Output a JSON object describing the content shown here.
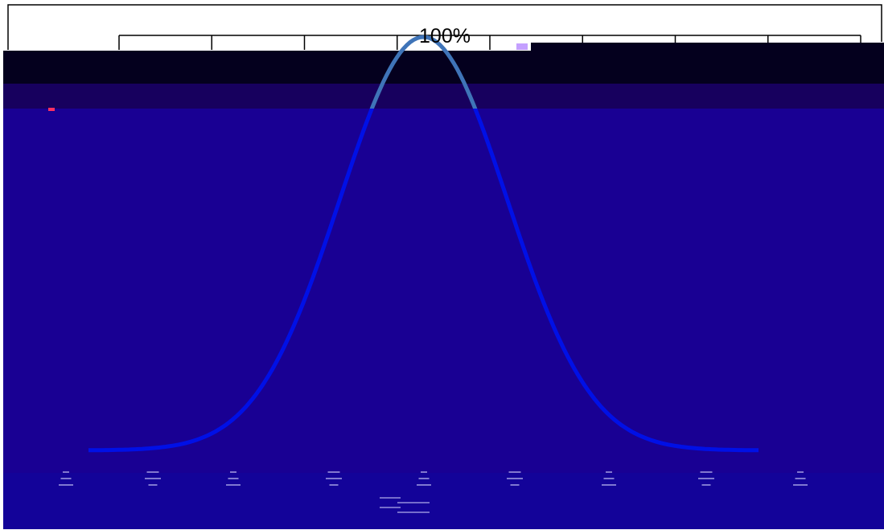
{
  "colors": {
    "page": "#ffffff",
    "top_band": "#04001e",
    "mid_band": "#17005e",
    "plot_area": "#190093",
    "label_band": "#130399",
    "curve_main": "#0010e6",
    "curve_highlight": "#3f74b8",
    "ruler_line": "#000000"
  },
  "peak_label": "100%",
  "chart_data": {
    "type": "line",
    "title": "",
    "xlabel": "",
    "ylabel": "",
    "grid": false,
    "legend": "none",
    "ylim": [
      0,
      100
    ],
    "xlim": [
      -4,
      4
    ],
    "x": [
      -4,
      -3.5,
      -3,
      -2.5,
      -2,
      -1.5,
      -1,
      -0.5,
      0,
      0.5,
      1,
      1.5,
      2,
      2.5,
      3,
      3.5,
      4
    ],
    "series": [
      {
        "values": [
          0.03,
          0.2,
          1.1,
          4.4,
          13.5,
          32.5,
          60.7,
          88.2,
          100,
          88.2,
          60.7,
          32.5,
          13.5,
          4.4,
          1.1,
          0.2,
          0.03
        ]
      }
    ],
    "peak_annotation": "100%"
  }
}
